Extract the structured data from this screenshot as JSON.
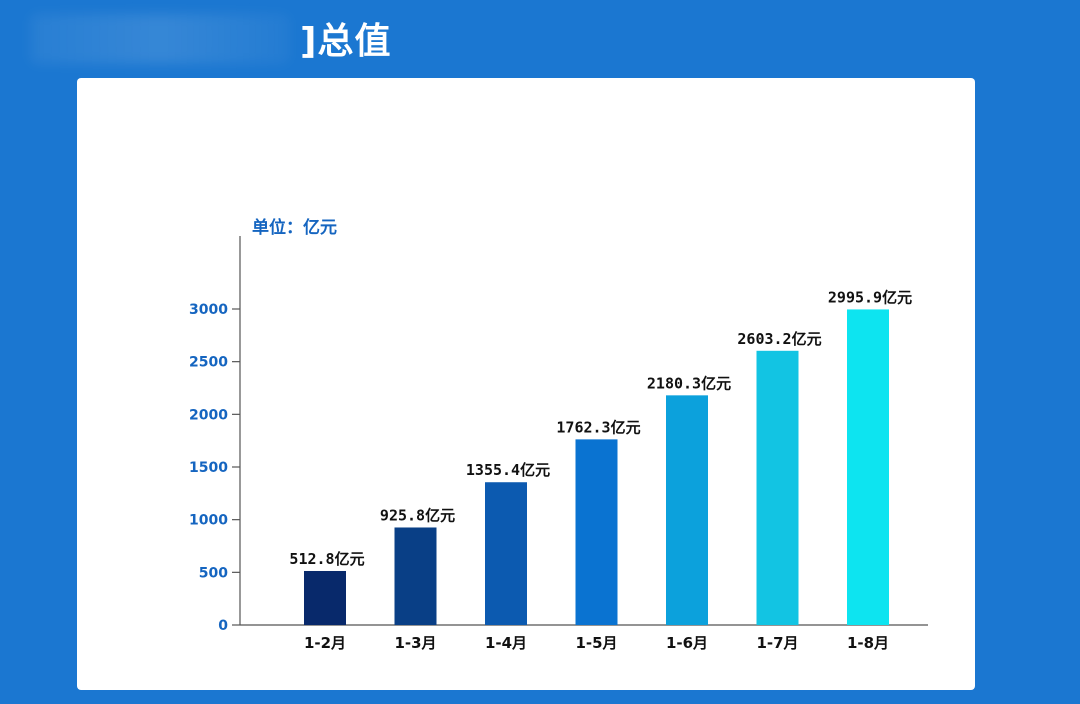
{
  "header": {
    "title": "]总值"
  },
  "chart_data": {
    "type": "bar",
    "unit_label": "单位：亿元",
    "categories": [
      "1-2月",
      "1-3月",
      "1-4月",
      "1-5月",
      "1-6月",
      "1-7月",
      "1-8月"
    ],
    "values": [
      512.8,
      925.8,
      1355.4,
      1762.3,
      2180.3,
      2603.2,
      2995.9
    ],
    "data_labels": [
      "512.8亿元",
      "925.8亿元",
      "1355.4亿元",
      "1762.3亿元",
      "2180.3亿元",
      "2603.2亿元",
      "2995.9亿元"
    ],
    "bar_colors": [
      "#08296b",
      "#093f86",
      "#0c5ab0",
      "#0a73d1",
      "#0ca1dc",
      "#12c4e3",
      "#0de4f0"
    ],
    "yticks": [
      0,
      500,
      1000,
      1500,
      2000,
      2500,
      3000
    ],
    "ylim": [
      0,
      3600
    ],
    "grid": false,
    "title": "",
    "xlabel": "",
    "ylabel": ""
  }
}
